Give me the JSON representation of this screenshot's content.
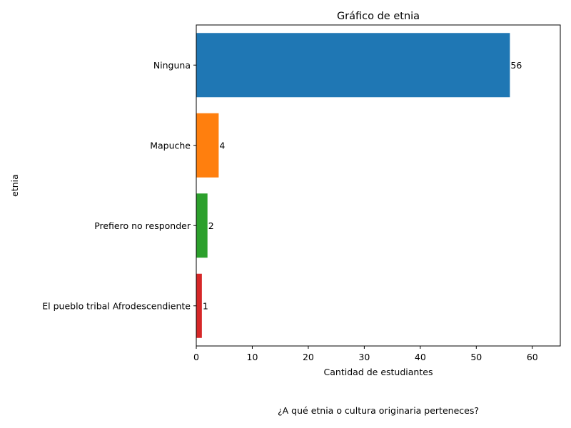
{
  "chart_data": {
    "type": "bar",
    "orientation": "horizontal",
    "title": "Gráfico de etnia",
    "xlabel": "Cantidad de estudiantes",
    "ylabel": "etnia",
    "categories": [
      "Ninguna",
      "Mapuche",
      "Prefiero no responder",
      "El pueblo tribal Afrodescendiente"
    ],
    "values": [
      56,
      4,
      2,
      1
    ],
    "data_labels": [
      "56",
      "4",
      "2",
      "1"
    ],
    "colors": [
      "#1f77b4",
      "#ff7f0e",
      "#2ca02c",
      "#d62728"
    ],
    "xlim": [
      0,
      65
    ],
    "xticks": [
      0,
      10,
      20,
      30,
      40,
      50,
      60
    ],
    "grid": false
  },
  "caption": "¿A qué etnia o cultura originaria perteneces?"
}
